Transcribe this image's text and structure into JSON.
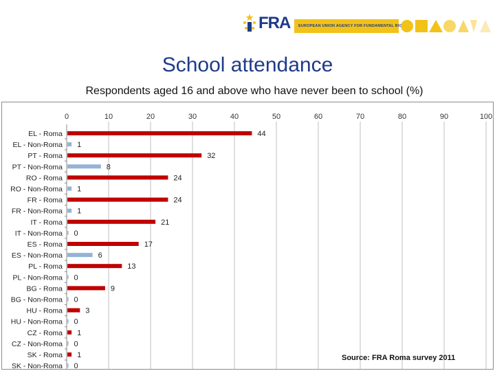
{
  "header": {
    "logo_text": "FRA",
    "banner_text": "EUROPEAN UNION AGENCY FOR FUNDAMENTAL RIGHTS",
    "colors": {
      "brand_blue": "#1d3a8a",
      "brand_yellow": "#f2c218"
    }
  },
  "source": "Source: FRA Roma survey 2011",
  "chart_data": {
    "type": "bar",
    "orientation": "horizontal",
    "title": "School attendance",
    "subtitle": "Respondents aged 16 and above who have never been to school (%)",
    "xlim": [
      0,
      100
    ],
    "xticks": [
      0,
      10,
      20,
      30,
      40,
      50,
      60,
      70,
      80,
      90,
      100
    ],
    "grid": true,
    "categories": [
      "EL - Roma",
      "EL - Non-Roma",
      "PT - Roma",
      "PT - Non-Roma",
      "RO - Roma",
      "RO - Non-Roma",
      "FR - Roma",
      "FR - Non-Roma",
      "IT - Roma",
      "IT - Non-Roma",
      "ES - Roma",
      "ES - Non-Roma",
      "PL - Roma",
      "PL - Non-Roma",
      "BG - Roma",
      "BG - Non-Roma",
      "HU - Roma",
      "HU - Non-Roma",
      "CZ - Roma",
      "CZ - Non-Roma",
      "SK - Roma",
      "SK - Non-Roma"
    ],
    "values": [
      44,
      1,
      32,
      8,
      24,
      1,
      24,
      1,
      21,
      0,
      17,
      6,
      13,
      0,
      9,
      0,
      3,
      0,
      1,
      0,
      1,
      0
    ],
    "groups": [
      "Roma",
      "Non-Roma",
      "Roma",
      "Non-Roma",
      "Roma",
      "Non-Roma",
      "Roma",
      "Non-Roma",
      "Roma",
      "Non-Roma",
      "Roma",
      "Non-Roma",
      "Roma",
      "Non-Roma",
      "Roma",
      "Non-Roma",
      "Roma",
      "Non-Roma",
      "Roma",
      "Non-Roma",
      "Roma",
      "Non-Roma"
    ],
    "colors": {
      "Roma": "#c00000",
      "Non-Roma": "#95b3d7"
    }
  }
}
